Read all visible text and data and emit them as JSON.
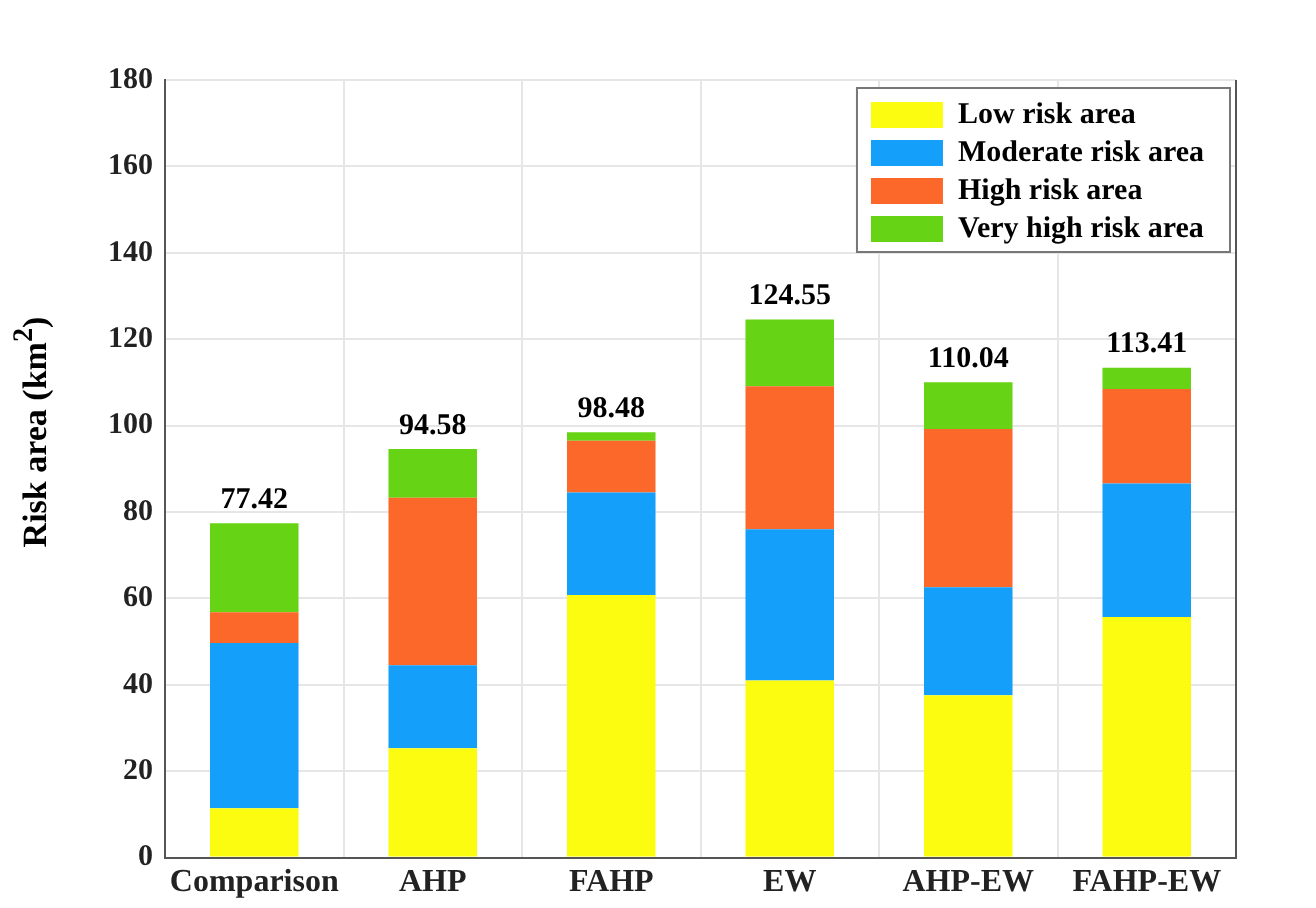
{
  "chart_data": {
    "type": "bar",
    "stacked": true,
    "ylabel": "Risk area (km$^{2}$)",
    "categories": [
      "Comparison",
      "AHP",
      "FAHP",
      "EW",
      "AHP-EW",
      "FAHP-EW"
    ],
    "series": [
      {
        "name": "Low risk area",
        "color": "#fcfc10",
        "values": [
          11.4,
          25.3,
          60.8,
          41.0,
          37.6,
          55.7
        ]
      },
      {
        "name": "Moderate risk area",
        "color": "#149ffb",
        "values": [
          38.3,
          19.2,
          23.7,
          35.0,
          25.0,
          30.9
        ]
      },
      {
        "name": "High risk area",
        "color": "#fc682a",
        "values": [
          7.1,
          38.8,
          12.0,
          33.1,
          36.6,
          21.9
        ]
      },
      {
        "name": "Very high risk area",
        "color": "#66d414",
        "values": [
          20.62,
          11.28,
          1.98,
          15.45,
          10.84,
          4.91
        ]
      }
    ],
    "totals": [
      "77.42",
      "94.58",
      "98.48",
      "124.55",
      "110.04",
      "113.41"
    ],
    "ylim": [
      0,
      180
    ],
    "yticks": [
      0,
      20,
      40,
      60,
      80,
      100,
      120,
      140,
      160,
      180
    ],
    "grid": true,
    "legend": "top right"
  }
}
